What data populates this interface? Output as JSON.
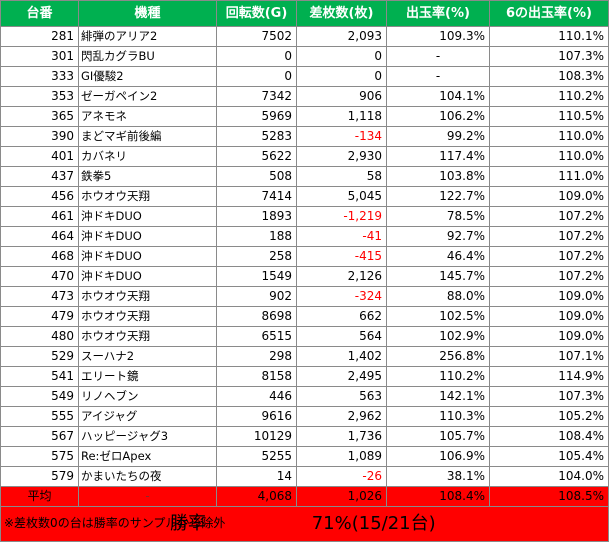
{
  "headers": [
    "台番",
    "機種",
    "回転数(G)",
    "差枚数(枚)",
    "出玉率(%)",
    "6の出玉率(%)"
  ],
  "rows": [
    {
      "no": "281",
      "name": "緋弾のアリア2",
      "spins": "7502",
      "diff": "2,093",
      "rate": "109.3%",
      "rate6": "110.1%",
      "neg": false
    },
    {
      "no": "301",
      "name": "閃乱カグラBU",
      "spins": "0",
      "diff": "0",
      "rate": "-",
      "rate6": "107.3%",
      "neg": false
    },
    {
      "no": "333",
      "name": "GI優駿2",
      "spins": "0",
      "diff": "0",
      "rate": "-",
      "rate6": "108.3%",
      "neg": false
    },
    {
      "no": "353",
      "name": "ゼーガペイン2",
      "spins": "7342",
      "diff": "906",
      "rate": "104.1%",
      "rate6": "110.2%",
      "neg": false
    },
    {
      "no": "365",
      "name": "アネモネ",
      "spins": "5969",
      "diff": "1,118",
      "rate": "106.2%",
      "rate6": "110.5%",
      "neg": false
    },
    {
      "no": "390",
      "name": "まどマギ前後編",
      "spins": "5283",
      "diff": "-134",
      "rate": "99.2%",
      "rate6": "110.0%",
      "neg": true
    },
    {
      "no": "401",
      "name": "カバネリ",
      "spins": "5622",
      "diff": "2,930",
      "rate": "117.4%",
      "rate6": "110.0%",
      "neg": false
    },
    {
      "no": "437",
      "name": "鉄拳5",
      "spins": "508",
      "diff": "58",
      "rate": "103.8%",
      "rate6": "111.0%",
      "neg": false
    },
    {
      "no": "456",
      "name": "ホウオウ天翔",
      "spins": "7414",
      "diff": "5,045",
      "rate": "122.7%",
      "rate6": "109.0%",
      "neg": false
    },
    {
      "no": "461",
      "name": "沖ドキDUO",
      "spins": "1893",
      "diff": "-1,219",
      "rate": "78.5%",
      "rate6": "107.2%",
      "neg": true
    },
    {
      "no": "464",
      "name": "沖ドキDUO",
      "spins": "188",
      "diff": "-41",
      "rate": "92.7%",
      "rate6": "107.2%",
      "neg": true
    },
    {
      "no": "468",
      "name": "沖ドキDUO",
      "spins": "258",
      "diff": "-415",
      "rate": "46.4%",
      "rate6": "107.2%",
      "neg": true
    },
    {
      "no": "470",
      "name": "沖ドキDUO",
      "spins": "1549",
      "diff": "2,126",
      "rate": "145.7%",
      "rate6": "107.2%",
      "neg": false
    },
    {
      "no": "473",
      "name": "ホウオウ天翔",
      "spins": "902",
      "diff": "-324",
      "rate": "88.0%",
      "rate6": "109.0%",
      "neg": true
    },
    {
      "no": "479",
      "name": "ホウオウ天翔",
      "spins": "8698",
      "diff": "662",
      "rate": "102.5%",
      "rate6": "109.0%",
      "neg": false
    },
    {
      "no": "480",
      "name": "ホウオウ天翔",
      "spins": "6515",
      "diff": "564",
      "rate": "102.9%",
      "rate6": "109.0%",
      "neg": false
    },
    {
      "no": "529",
      "name": "スーハナ2",
      "spins": "298",
      "diff": "1,402",
      "rate": "256.8%",
      "rate6": "107.1%",
      "neg": false
    },
    {
      "no": "541",
      "name": "エリート鏡",
      "spins": "8158",
      "diff": "2,495",
      "rate": "110.2%",
      "rate6": "114.9%",
      "neg": false
    },
    {
      "no": "549",
      "name": "リノヘブン",
      "spins": "446",
      "diff": "563",
      "rate": "142.1%",
      "rate6": "107.3%",
      "neg": false
    },
    {
      "no": "555",
      "name": "アイジャグ",
      "spins": "9616",
      "diff": "2,962",
      "rate": "110.3%",
      "rate6": "105.2%",
      "neg": false
    },
    {
      "no": "567",
      "name": "ハッピージャグ3",
      "spins": "10129",
      "diff": "1,736",
      "rate": "105.7%",
      "rate6": "108.4%",
      "neg": false
    },
    {
      "no": "575",
      "name": "Re:ゼロApex",
      "spins": "5255",
      "diff": "1,089",
      "rate": "106.9%",
      "rate6": "105.4%",
      "neg": false
    },
    {
      "no": "579",
      "name": "かまいたちの夜",
      "spins": "14",
      "diff": "-26",
      "rate": "38.1%",
      "rate6": "104.0%",
      "neg": true
    }
  ],
  "average": {
    "label": "平均",
    "name": "-",
    "spins": "4,068",
    "diff": "1,026",
    "rate": "108.4%",
    "rate6": "108.5%"
  },
  "win": {
    "label": "勝率",
    "value": "71%(15/21台)"
  },
  "note": "※差枚数0の台は勝率のサンプルから除外",
  "colors": {
    "header_bg": "#00b050",
    "negative": "#ff0000",
    "summary_bg": "#ff0000"
  }
}
